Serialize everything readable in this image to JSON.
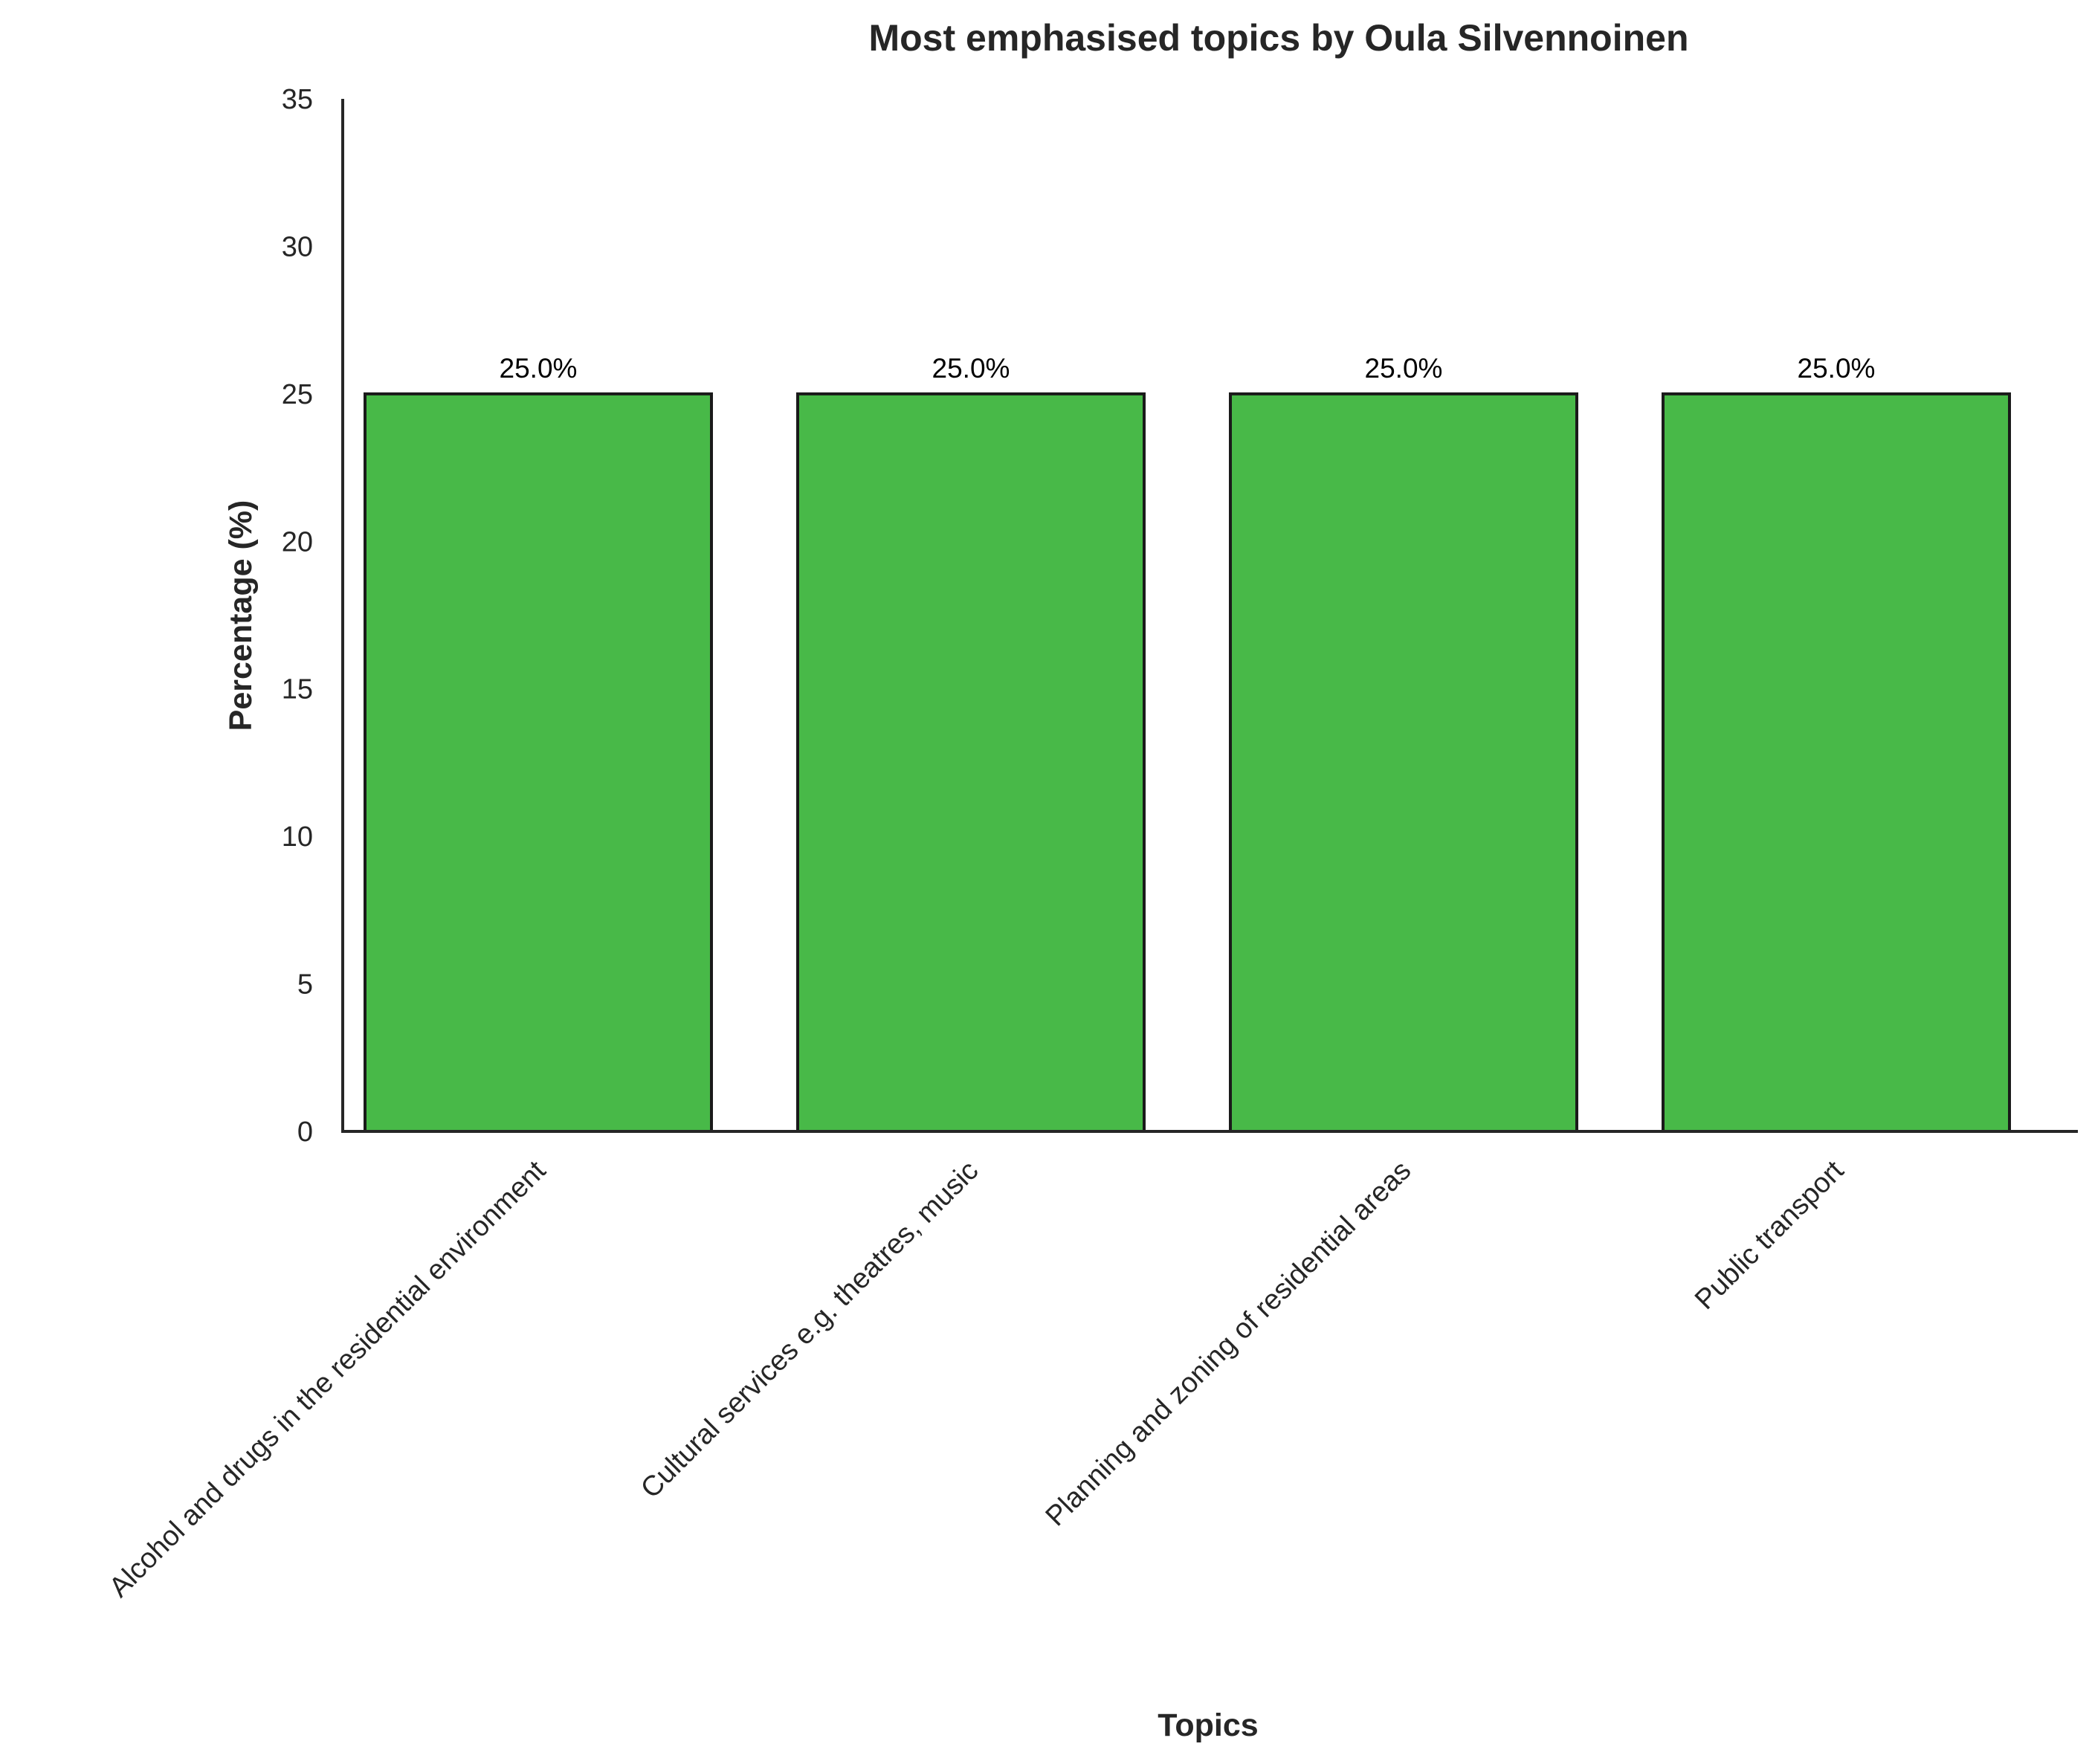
{
  "chart_data": {
    "type": "bar",
    "title": "Most emphasised topics by Oula Silvennoinen",
    "xlabel": "Topics",
    "ylabel": "Percentage (%)",
    "categories": [
      "Alcohol and drugs in the residential environment",
      "Cultural services e.g. theatres, music",
      "Planning and zoning of residential areas",
      "Public transport"
    ],
    "values": [
      25.0,
      25.0,
      25.0,
      25.0
    ],
    "data_labels": [
      "25.0%",
      "25.0%",
      "25.0%",
      "25.0%"
    ],
    "ylim": [
      0,
      35
    ],
    "yticks": [
      "0",
      "5",
      "10",
      "15",
      "20",
      "25",
      "30",
      "35"
    ],
    "grid": false,
    "bar_color": "#48b948",
    "edge_color": "#1a1a1a"
  }
}
